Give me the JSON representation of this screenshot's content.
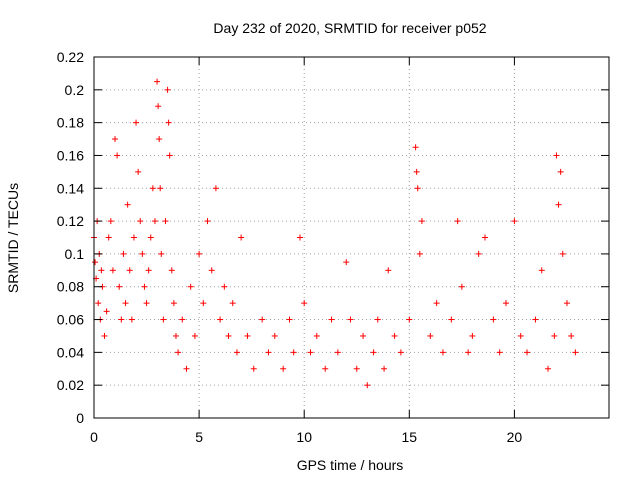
{
  "chart_data": {
    "type": "scatter",
    "title": "Day 232 of 2020, SRMTID for receiver p052",
    "xlabel": "GPS time / hours",
    "ylabel": "SRMTID / TECUs",
    "xlim": [
      0,
      24.5
    ],
    "ylim": [
      0,
      0.22
    ],
    "xticks": [
      0,
      5,
      10,
      15,
      20
    ],
    "xtick_labels": [
      "0",
      "5",
      "10",
      "15",
      "20"
    ],
    "yticks": [
      0,
      0.02,
      0.04,
      0.06,
      0.08,
      0.1,
      0.12,
      0.14,
      0.16,
      0.18,
      0.2,
      0.22
    ],
    "ytick_labels": [
      "0",
      "0.02",
      "0.04",
      "0.06",
      "0.08",
      "0.1",
      "0.12",
      "0.14",
      "0.16",
      "0.18",
      "0.2",
      "0.22"
    ],
    "grid": true,
    "marker": "+",
    "marker_color": "#ff0000",
    "series": [
      {
        "name": "SRMTID",
        "x": [
          0.0,
          0.05,
          0.1,
          0.15,
          0.2,
          0.25,
          0.3,
          0.35,
          0.4,
          0.5,
          0.6,
          0.7,
          0.8,
          0.9,
          1.0,
          1.1,
          1.2,
          1.3,
          1.4,
          1.5,
          1.6,
          1.7,
          1.8,
          1.9,
          2.0,
          2.1,
          2.2,
          2.3,
          2.4,
          2.5,
          2.6,
          2.7,
          2.8,
          2.9,
          3.0,
          3.05,
          3.1,
          3.15,
          3.2,
          3.3,
          3.4,
          3.5,
          3.55,
          3.6,
          3.7,
          3.8,
          3.9,
          4.0,
          4.2,
          4.4,
          4.6,
          4.8,
          5.0,
          5.2,
          5.4,
          5.6,
          5.8,
          6.0,
          6.2,
          6.4,
          6.6,
          6.8,
          7.0,
          7.3,
          7.6,
          8.0,
          8.3,
          8.6,
          9.0,
          9.3,
          9.5,
          9.8,
          10.0,
          10.3,
          10.6,
          11.0,
          11.3,
          11.6,
          12.0,
          12.2,
          12.5,
          12.8,
          13.0,
          13.3,
          13.5,
          13.8,
          14.0,
          14.3,
          14.6,
          15.0,
          15.3,
          15.35,
          15.4,
          15.5,
          15.6,
          16.0,
          16.3,
          16.6,
          17.0,
          17.3,
          17.5,
          17.8,
          18.0,
          18.3,
          18.6,
          19.0,
          19.3,
          19.6,
          20.0,
          20.3,
          20.6,
          21.0,
          21.3,
          21.6,
          21.9,
          22.0,
          22.1,
          22.2,
          22.3,
          22.5,
          22.7,
          22.9
        ],
        "y": [
          0.11,
          0.095,
          0.085,
          0.12,
          0.07,
          0.1,
          0.06,
          0.09,
          0.08,
          0.05,
          0.065,
          0.11,
          0.12,
          0.09,
          0.17,
          0.16,
          0.08,
          0.06,
          0.1,
          0.07,
          0.13,
          0.09,
          0.06,
          0.11,
          0.18,
          0.15,
          0.12,
          0.1,
          0.08,
          0.07,
          0.09,
          0.11,
          0.14,
          0.12,
          0.205,
          0.19,
          0.17,
          0.14,
          0.1,
          0.06,
          0.12,
          0.2,
          0.18,
          0.16,
          0.09,
          0.07,
          0.05,
          0.04,
          0.06,
          0.03,
          0.08,
          0.05,
          0.1,
          0.07,
          0.12,
          0.09,
          0.14,
          0.06,
          0.08,
          0.05,
          0.07,
          0.04,
          0.11,
          0.05,
          0.03,
          0.06,
          0.04,
          0.05,
          0.03,
          0.06,
          0.04,
          0.11,
          0.07,
          0.04,
          0.05,
          0.03,
          0.06,
          0.04,
          0.095,
          0.06,
          0.03,
          0.05,
          0.02,
          0.04,
          0.06,
          0.03,
          0.09,
          0.05,
          0.04,
          0.06,
          0.165,
          0.15,
          0.14,
          0.1,
          0.12,
          0.05,
          0.07,
          0.04,
          0.06,
          0.12,
          0.08,
          0.04,
          0.05,
          0.1,
          0.11,
          0.06,
          0.04,
          0.07,
          0.12,
          0.05,
          0.04,
          0.06,
          0.09,
          0.03,
          0.05,
          0.16,
          0.13,
          0.15,
          0.1,
          0.07,
          0.05,
          0.04
        ]
      }
    ]
  }
}
